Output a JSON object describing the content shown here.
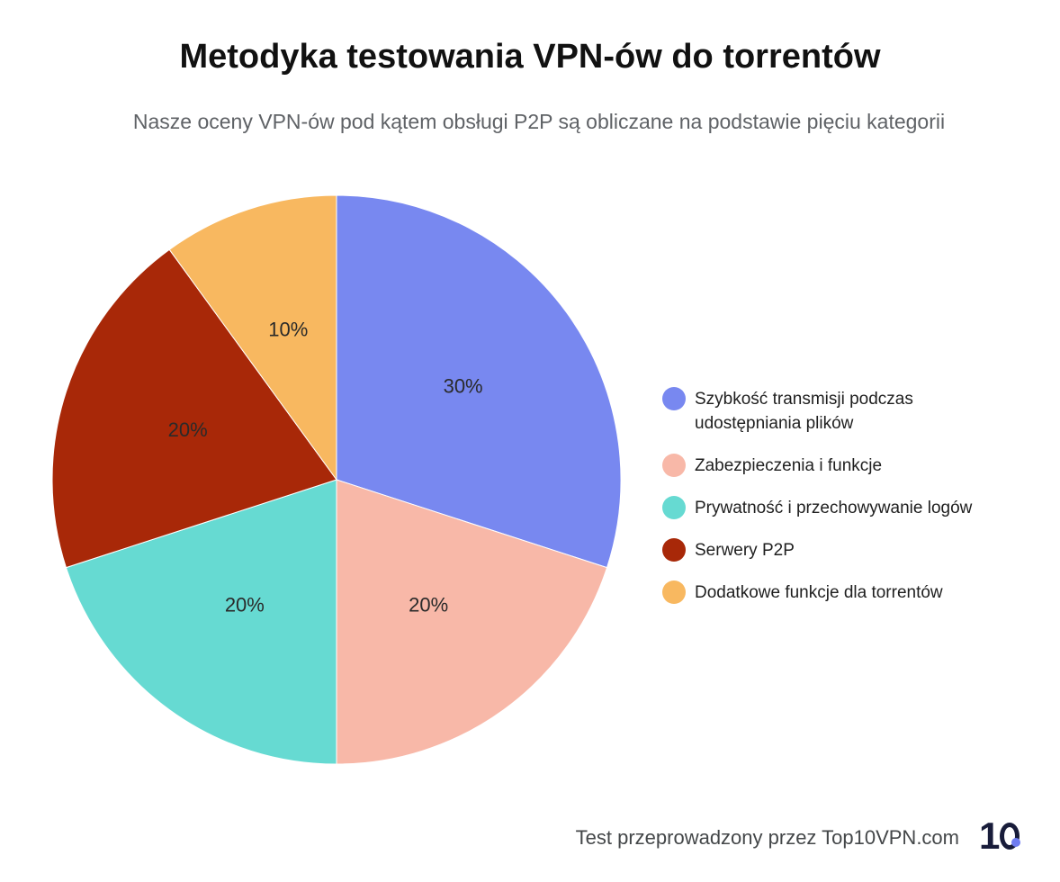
{
  "header": {
    "title": "Metodyka testowania VPN-ów do torrentów",
    "subtitle": "Nasze oceny VPN-ów pod kątem obsługi P2P są obliczane na podstawie pięciu kategorii"
  },
  "chart_data": {
    "type": "pie",
    "title": "Metodyka testowania VPN-ów do torrentów",
    "subtitle": "Nasze oceny VPN-ów pod kątem obsługi P2P są obliczane na podstawie pięciu kategorii",
    "categories": [
      "Szybkość transmisji podczas udostępniania plików",
      "Zabezpieczenia i funkcje",
      "Prywatność i przechowywanie logów",
      "Serwery P2P",
      "Dodatkowe funkcje dla torrentów"
    ],
    "values": [
      30,
      20,
      20,
      20,
      10
    ],
    "value_labels": [
      "30%",
      "20%",
      "20%",
      "20%",
      "10%"
    ],
    "colors": [
      "#7888f0",
      "#f8b8a8",
      "#66dad2",
      "#a82808",
      "#f8b860"
    ],
    "legend_position": "right"
  },
  "footer": {
    "credit": "Test przeprowadzony przez Top10VPN.com"
  },
  "logo": {
    "icon": "top10vpn-logo-icon",
    "text": "10"
  }
}
